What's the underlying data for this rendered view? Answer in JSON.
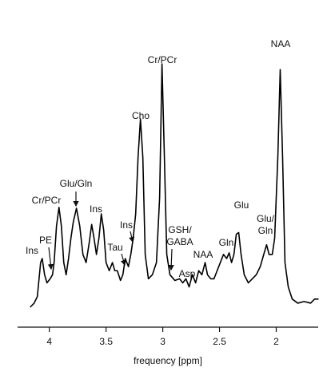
{
  "chart_data": {
    "type": "line",
    "x_label": "frequency [ppm]",
    "xlim": [
      4.28,
      1.63
    ],
    "xticks": [
      4,
      3.5,
      3,
      2.5,
      2
    ],
    "annotations": [
      [
        "Ins"
      ],
      [
        "PE"
      ],
      [
        "Cr/PCr"
      ],
      [
        "Glu/Gln"
      ],
      [
        "Ins"
      ],
      [
        "Tau"
      ],
      [
        "Ins"
      ],
      [
        "Cho"
      ],
      [
        "Cr/PCr"
      ],
      [
        "GSH/",
        "GABA"
      ],
      [
        "Asp"
      ],
      [
        "NAA"
      ],
      [
        "Gln"
      ],
      [
        "Glu"
      ],
      [
        "Glu/",
        "Gln"
      ],
      [
        "NAA"
      ]
    ],
    "x": [
      4.169,
      4.134,
      4.106,
      4.077,
      4.063,
      4.042,
      4.021,
      3.993,
      3.972,
      3.958,
      3.937,
      3.915,
      3.894,
      3.873,
      3.852,
      3.831,
      3.81,
      3.789,
      3.761,
      3.732,
      3.704,
      3.676,
      3.648,
      3.627,
      3.606,
      3.585,
      3.563,
      3.542,
      3.521,
      3.5,
      3.472,
      3.444,
      3.423,
      3.401,
      3.373,
      3.352,
      3.331,
      3.303,
      3.282,
      3.261,
      3.239,
      3.218,
      3.197,
      3.176,
      3.155,
      3.127,
      3.092,
      3.056,
      3.028,
      3.007,
      2.986,
      2.965,
      2.937,
      2.894,
      2.852,
      2.824,
      2.796,
      2.768,
      2.739,
      2.711,
      2.683,
      2.655,
      2.627,
      2.606,
      2.577,
      2.549,
      2.521,
      2.493,
      2.465,
      2.437,
      2.415,
      2.394,
      2.373,
      2.352,
      2.331,
      2.31,
      2.282,
      2.246,
      2.211,
      2.176,
      2.141,
      2.106,
      2.085,
      2.063,
      2.035,
      2.014,
      1.986,
      1.965,
      1.944,
      1.923,
      1.894,
      1.859,
      1.81,
      1.754,
      1.697,
      1.662,
      1.627
    ],
    "series": [
      {
        "color": "#000000",
        "values": [
          0,
          5,
          13,
          55,
          60,
          40,
          30,
          35,
          40,
          55,
          100,
          123,
          100,
          55,
          40,
          60,
          85,
          105,
          122,
          100,
          65,
          55,
          80,
          102,
          85,
          65,
          85,
          115,
          95,
          55,
          45,
          55,
          45,
          45,
          33,
          40,
          60,
          50,
          65,
          85,
          115,
          185,
          232,
          185,
          65,
          35,
          40,
          55,
          135,
          300,
          185,
          65,
          40,
          33,
          35,
          30,
          35,
          25,
          40,
          30,
          45,
          40,
          55,
          40,
          35,
          35,
          45,
          55,
          65,
          60,
          67,
          55,
          65,
          90,
          92,
          65,
          40,
          30,
          35,
          40,
          50,
          67,
          77,
          65,
          65,
          85,
          185,
          293,
          185,
          55,
          25,
          10,
          5,
          7,
          5,
          10,
          10
        ]
      }
    ]
  }
}
